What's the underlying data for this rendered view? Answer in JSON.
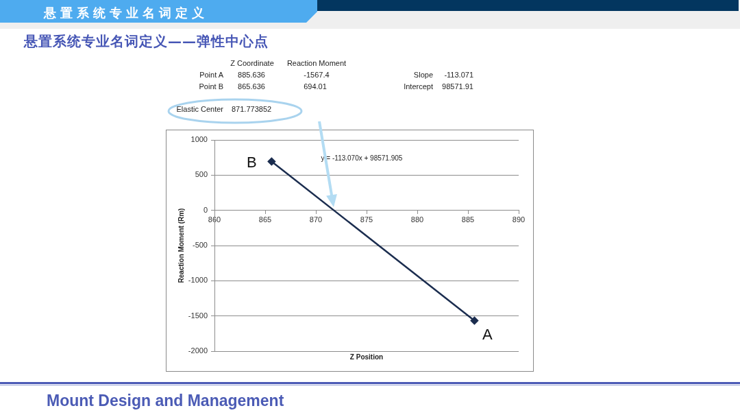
{
  "chart_data": {
    "type": "line",
    "title": "悬置系统专业名词定义",
    "subtitle": "悬置系统专业名词定义——弹性中心点",
    "xlabel": "Z Position",
    "ylabel": "Reaction Moment (Rm)",
    "annotations": [
      "Z Coordinate",
      "Reaction Moment",
      "Point A",
      "885.636",
      "-1567.4",
      "Slope",
      "-113.071",
      "Point B",
      "865.636",
      "694.01",
      "Intercept",
      "98571.91",
      "Elastic Center",
      "871.773852",
      "Mount Design and Management",
      "y = -113.070x + 98571.905",
      {
        "text": "B",
        "x": 865.636,
        "y": 694.01
      },
      {
        "text": "A",
        "x": 885.636,
        "y": -1567.4
      }
    ],
    "series": [
      {
        "color": "#1b2d4f",
        "x": [
          865.636,
          885.636
        ],
        "values": [
          694.01,
          -1567.4
        ]
      }
    ],
    "marker": "diamond",
    "xlim": [
      860,
      890
    ],
    "xticks": [
      860,
      865,
      870,
      875,
      880,
      885,
      890
    ],
    "ylim": [
      -2000,
      1000
    ],
    "yticks": [
      -2000,
      -1500,
      -1000,
      -500,
      0,
      500,
      1000
    ],
    "grid": "y"
  }
}
